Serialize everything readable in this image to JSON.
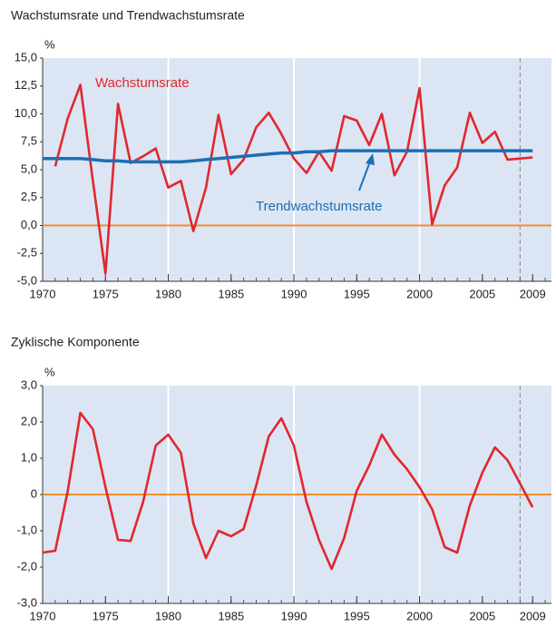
{
  "chart_data": [
    {
      "type": "line",
      "title": "Wachstumsrate und Trendwachstumsrate",
      "ylabel": "%",
      "x": [
        1970,
        1971,
        1972,
        1973,
        1974,
        1975,
        1976,
        1977,
        1978,
        1979,
        1980,
        1981,
        1982,
        1983,
        1984,
        1985,
        1986,
        1987,
        1988,
        1989,
        1990,
        1991,
        1992,
        1993,
        1994,
        1995,
        1996,
        1997,
        1998,
        1999,
        2000,
        2001,
        2002,
        2003,
        2004,
        2005,
        2006,
        2007,
        2008,
        2009
      ],
      "series": [
        {
          "name": "Wachstumsrate",
          "color": "#e0282e",
          "values": [
            null,
            5.3,
            9.6,
            12.6,
            4.0,
            -4.3,
            10.9,
            5.6,
            6.2,
            6.9,
            3.4,
            4.0,
            -0.5,
            3.4,
            9.9,
            4.6,
            5.9,
            8.8,
            10.1,
            8.2,
            6.0,
            4.7,
            6.6,
            4.9,
            9.8,
            9.4,
            7.2,
            10.0,
            4.5,
            6.6,
            12.3,
            0.1,
            3.6,
            5.2,
            10.1,
            7.4,
            8.4,
            5.9,
            6.0,
            6.1
          ]
        },
        {
          "name": "Trendwachstumsrate",
          "color": "#1a6fb5",
          "values": [
            6.0,
            6.0,
            6.0,
            6.0,
            5.9,
            5.8,
            5.8,
            5.7,
            5.7,
            5.7,
            5.7,
            5.7,
            5.8,
            5.9,
            6.0,
            6.1,
            6.2,
            6.3,
            6.4,
            6.5,
            6.5,
            6.6,
            6.6,
            6.7,
            6.7,
            6.7,
            6.7,
            6.7,
            6.7,
            6.7,
            6.7,
            6.7,
            6.7,
            6.7,
            6.7,
            6.7,
            6.7,
            6.7,
            6.7,
            6.7
          ]
        }
      ],
      "xlim": [
        1970,
        2010.5
      ],
      "xticks": [
        1970,
        1975,
        1980,
        1985,
        1990,
        1995,
        2000,
        2005,
        2009
      ],
      "ylim": [
        -5,
        15
      ],
      "yticks": [
        {
          "value": -5,
          "label": "-5,0"
        },
        {
          "value": -2.5,
          "label": "-2,5"
        },
        {
          "value": 0,
          "label": "0,0"
        },
        {
          "value": 2.5,
          "label": "2,5"
        },
        {
          "value": 5,
          "label": "5,0"
        },
        {
          "value": 7.5,
          "label": "7,5"
        },
        {
          "value": 10,
          "label": "10,0"
        },
        {
          "value": 12.5,
          "label": "12,5"
        },
        {
          "value": 15,
          "label": "15,0"
        }
      ],
      "vgrid": [
        1980,
        1990,
        2000
      ],
      "dashed_vline": 2008,
      "hline": 0,
      "hline_color": "#f0902a",
      "background": "#dce5f4"
    },
    {
      "type": "line",
      "title": "Zyklische Komponente",
      "ylabel": "%",
      "x": [
        1970,
        1971,
        1972,
        1973,
        1974,
        1975,
        1976,
        1977,
        1978,
        1979,
        1980,
        1981,
        1982,
        1983,
        1984,
        1985,
        1986,
        1987,
        1988,
        1989,
        1990,
        1991,
        1992,
        1993,
        1994,
        1995,
        1996,
        1997,
        1998,
        1999,
        2000,
        2001,
        2002,
        2003,
        2004,
        2005,
        2006,
        2007,
        2008,
        2009
      ],
      "series": [
        {
          "name": "Zyklische Komponente",
          "color": "#e0282e",
          "values": [
            -1.6,
            -1.55,
            0.1,
            2.25,
            1.8,
            0.2,
            -1.25,
            -1.28,
            -0.2,
            1.35,
            1.65,
            1.15,
            -0.8,
            -1.75,
            -1.0,
            -1.15,
            -0.95,
            0.25,
            1.6,
            2.1,
            1.35,
            -0.2,
            -1.25,
            -2.05,
            -1.2,
            0.1,
            0.8,
            1.65,
            1.1,
            0.7,
            0.2,
            -0.4,
            -1.45,
            -1.6,
            -0.3,
            0.6,
            1.3,
            0.95,
            0.3,
            -0.35
          ]
        }
      ],
      "xlim": [
        1970,
        2010.5
      ],
      "xticks": [
        1970,
        1975,
        1980,
        1985,
        1990,
        1995,
        2000,
        2005,
        2009
      ],
      "ylim": [
        -3,
        3
      ],
      "yticks": [
        {
          "value": -3,
          "label": "-3,0"
        },
        {
          "value": -2,
          "label": "-2,0"
        },
        {
          "value": -1,
          "label": "-1,0"
        },
        0,
        {
          "value": 1,
          "label": "1,0"
        },
        {
          "value": 2,
          "label": "2,0"
        },
        {
          "value": 3,
          "label": "3,0"
        }
      ],
      "vgrid": [
        1980,
        1990,
        2000
      ],
      "dashed_vline": 2008,
      "hline": 0,
      "hline_color": "#f0902a",
      "background": "#dce5f4"
    }
  ]
}
